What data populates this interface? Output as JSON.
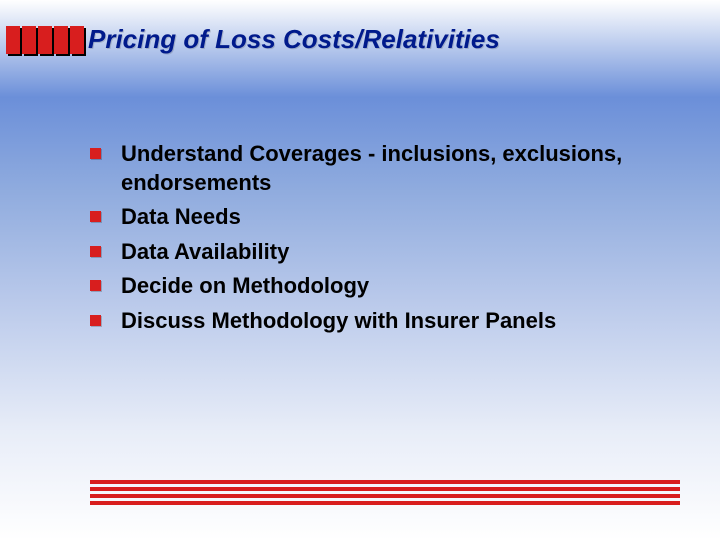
{
  "title": "Pricing of Loss Costs/Relativities",
  "colors": {
    "accent_red": "#d81e1e",
    "title_blue": "#001a8c",
    "text_black": "#000000",
    "shadow_black": "#000000",
    "gradient_top": "#ffffff",
    "gradient_mid": "#6b8fd9",
    "gradient_bottom": "#ffffff"
  },
  "header_blocks": {
    "count": 5,
    "width": 14,
    "height": 28,
    "gap": 2,
    "color": "#d81e1e"
  },
  "bullets": [
    {
      "text": "Understand Coverages - inclusions, exclusions, endorsements"
    },
    {
      "text": "Data Needs"
    },
    {
      "text": "Data Availability"
    },
    {
      "text": "Decide on Methodology"
    },
    {
      "text": "Discuss Methodology with Insurer Panels"
    }
  ],
  "bullet_style": {
    "marker_size": 11,
    "marker_color": "#d81e1e",
    "text_fontsize": 22,
    "text_weight": "bold"
  },
  "footer_lines": {
    "count": 4,
    "height": 4,
    "gap": 3,
    "color": "#d81e1e"
  },
  "typography": {
    "title_fontsize": 26,
    "title_weight": "bold",
    "title_style": "italic",
    "font_family": "Arial"
  }
}
